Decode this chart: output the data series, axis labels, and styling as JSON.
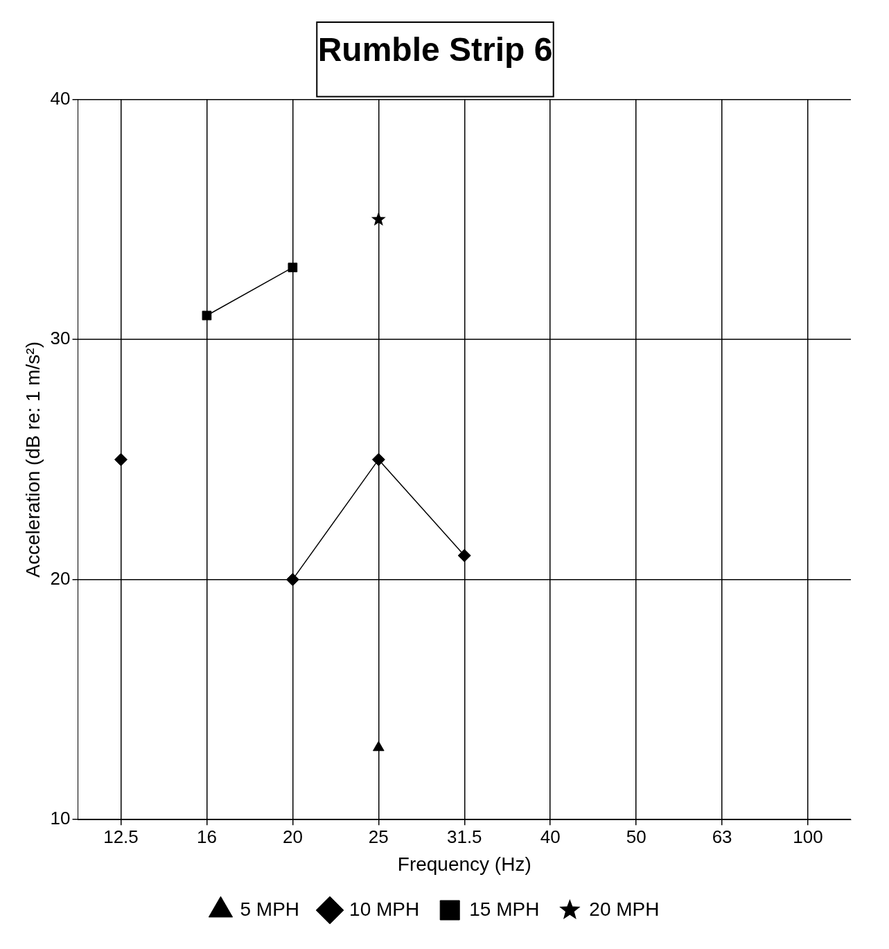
{
  "chart_data": {
    "type": "line",
    "title": "Rumble Strip 6",
    "xlabel": "Frequency (Hz)",
    "ylabel": "Acceleration (dB re: 1 m/s²)",
    "categories": [
      "12.5",
      "16",
      "20",
      "25",
      "31.5",
      "40",
      "50",
      "63",
      "100"
    ],
    "ylim": [
      10,
      40
    ],
    "yticks": [
      10,
      20,
      30,
      40
    ],
    "grid": true,
    "legend": "bottom",
    "series": [
      {
        "name": "5 MPH",
        "color": "#000000",
        "marker": "triangle",
        "values": [
          null,
          null,
          null,
          13,
          null,
          null,
          null,
          null,
          null
        ]
      },
      {
        "name": "10 MPH",
        "color": "#000000",
        "marker": "diamond",
        "values": [
          25,
          null,
          20,
          25,
          21,
          null,
          null,
          null,
          null
        ]
      },
      {
        "name": "15 MPH",
        "color": "#000000",
        "marker": "square",
        "values": [
          null,
          31,
          33,
          null,
          null,
          null,
          null,
          null,
          null
        ]
      },
      {
        "name": "20 MPH",
        "color": "#000000",
        "marker": "star",
        "values": [
          null,
          null,
          null,
          35,
          null,
          null,
          null,
          null,
          null
        ]
      }
    ]
  }
}
